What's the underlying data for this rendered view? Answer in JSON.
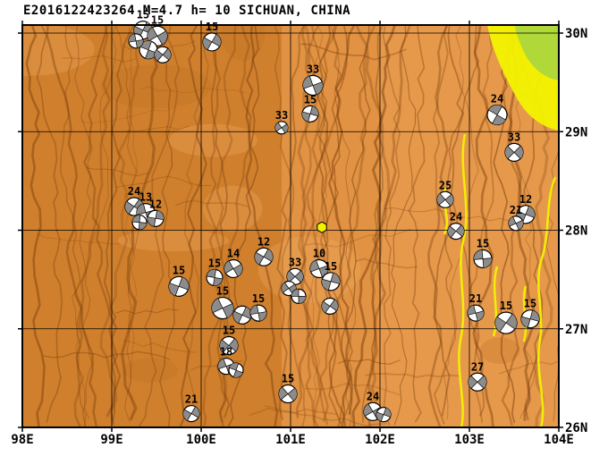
{
  "title": "E2016122423264 M=4.7 h= 10 SICHUAN, CHINA",
  "map": {
    "lon_ticks": [
      {
        "value": 98,
        "label": "98E"
      },
      {
        "value": 99,
        "label": "99E"
      },
      {
        "value": 100,
        "label": "100E"
      },
      {
        "value": 101,
        "label": "101E"
      },
      {
        "value": 102,
        "label": "102E"
      },
      {
        "value": 103,
        "label": "103E"
      },
      {
        "value": 104,
        "label": "104E"
      }
    ],
    "lat_ticks": [
      {
        "value": 30,
        "label": "30N"
      },
      {
        "value": 29,
        "label": "29N"
      },
      {
        "value": 28,
        "label": "28N"
      },
      {
        "value": 27,
        "label": "27N"
      },
      {
        "value": 26,
        "label": "26N"
      }
    ]
  },
  "colors": {
    "land_light": "#E6994B",
    "land_mid": "#DE8F3F",
    "land_dark": "#D0802D",
    "drainage": "#7A3E0C",
    "blotch_dark": "#B96F1F",
    "blotch_light": "#F3B169",
    "highland_yellow": "#F2F200",
    "highland_green": "#AFD838",
    "ball_fill": "#FFFFFF",
    "ball_shade": "#8C8C8C",
    "frame": "#000000"
  },
  "event_marker": {
    "lon": 101.35,
    "lat": 28.03,
    "shape": "hexagon",
    "color": "#F2F200"
  },
  "chart_data": {
    "type": "map-focal-mechanisms",
    "region": {
      "lon_min": 98,
      "lon_max": 104,
      "lat_min": 26,
      "lat_max": 30.08,
      "place": "SICHUAN, CHINA"
    },
    "mechanisms": [
      {
        "lon": 99.35,
        "lat": 30.03,
        "depth": "15",
        "r": 10,
        "rot": 25
      },
      {
        "lon": 99.51,
        "lat": 29.97,
        "depth": "15",
        "r": 11,
        "rot": 60
      },
      {
        "lon": 99.41,
        "lat": 29.83,
        "depth": "",
        "r": 10,
        "rot": 110
      },
      {
        "lon": 99.57,
        "lat": 29.78,
        "depth": "",
        "r": 9,
        "rot": 40
      },
      {
        "lon": 99.27,
        "lat": 29.92,
        "depth": "",
        "r": 8,
        "rot": 80
      },
      {
        "lon": 100.12,
        "lat": 29.91,
        "depth": "15",
        "r": 10,
        "rot": 30
      },
      {
        "lon": 101.25,
        "lat": 29.47,
        "depth": "33",
        "r": 11,
        "rot": 70
      },
      {
        "lon": 101.22,
        "lat": 29.18,
        "depth": "15",
        "r": 9,
        "rot": 15
      },
      {
        "lon": 100.9,
        "lat": 29.04,
        "depth": "33",
        "r": 7,
        "rot": 55
      },
      {
        "lon": 103.31,
        "lat": 29.17,
        "depth": "24",
        "r": 11,
        "rot": 120
      },
      {
        "lon": 103.5,
        "lat": 28.79,
        "depth": "33",
        "r": 10,
        "rot": 45
      },
      {
        "lon": 99.25,
        "lat": 28.24,
        "depth": "24",
        "r": 10,
        "rot": 35
      },
      {
        "lon": 99.38,
        "lat": 28.18,
        "depth": "13",
        "r": 10,
        "rot": 75
      },
      {
        "lon": 99.49,
        "lat": 28.12,
        "depth": "12",
        "r": 9,
        "rot": 10
      },
      {
        "lon": 99.31,
        "lat": 28.08,
        "depth": "",
        "r": 8,
        "rot": 95
      },
      {
        "lon": 102.73,
        "lat": 28.31,
        "depth": "25",
        "r": 9,
        "rot": 50
      },
      {
        "lon": 103.63,
        "lat": 28.16,
        "depth": "12",
        "r": 10,
        "rot": 20
      },
      {
        "lon": 103.52,
        "lat": 28.07,
        "depth": "21",
        "r": 8,
        "rot": 65
      },
      {
        "lon": 102.85,
        "lat": 27.99,
        "depth": "24",
        "r": 9,
        "rot": 40
      },
      {
        "lon": 103.15,
        "lat": 27.71,
        "depth": "15",
        "r": 10,
        "rot": 85
      },
      {
        "lon": 100.7,
        "lat": 27.73,
        "depth": "12",
        "r": 10,
        "rot": 30
      },
      {
        "lon": 100.36,
        "lat": 27.61,
        "depth": "14",
        "r": 10,
        "rot": 60
      },
      {
        "lon": 100.15,
        "lat": 27.52,
        "depth": "15",
        "r": 9,
        "rot": 100
      },
      {
        "lon": 99.75,
        "lat": 27.43,
        "depth": "15",
        "r": 11,
        "rot": 20
      },
      {
        "lon": 101.05,
        "lat": 27.53,
        "depth": "33",
        "r": 9,
        "rot": 45
      },
      {
        "lon": 101.32,
        "lat": 27.61,
        "depth": "10",
        "r": 10,
        "rot": 70
      },
      {
        "lon": 101.45,
        "lat": 27.48,
        "depth": "15",
        "r": 10,
        "rot": 15
      },
      {
        "lon": 100.98,
        "lat": 27.41,
        "depth": "",
        "r": 8,
        "rot": 55
      },
      {
        "lon": 101.09,
        "lat": 27.33,
        "depth": "",
        "r": 8,
        "rot": 90
      },
      {
        "lon": 101.44,
        "lat": 27.23,
        "depth": "",
        "r": 9,
        "rot": 35
      },
      {
        "lon": 100.24,
        "lat": 27.21,
        "depth": "15",
        "r": 12,
        "rot": 65
      },
      {
        "lon": 100.46,
        "lat": 27.14,
        "depth": "",
        "r": 10,
        "rot": 25
      },
      {
        "lon": 100.64,
        "lat": 27.16,
        "depth": "15",
        "r": 9,
        "rot": 80
      },
      {
        "lon": 100.31,
        "lat": 26.83,
        "depth": "15",
        "r": 10,
        "rot": 40
      },
      {
        "lon": 100.28,
        "lat": 26.62,
        "depth": "18",
        "r": 9,
        "rot": 70
      },
      {
        "lon": 100.39,
        "lat": 26.58,
        "depth": "",
        "r": 8,
        "rot": 110
      },
      {
        "lon": 100.97,
        "lat": 26.34,
        "depth": "15",
        "r": 10,
        "rot": 50
      },
      {
        "lon": 99.89,
        "lat": 26.14,
        "depth": "21",
        "r": 9,
        "rot": 30
      },
      {
        "lon": 101.92,
        "lat": 26.16,
        "depth": "24",
        "r": 10,
        "rot": 60
      },
      {
        "lon": 102.04,
        "lat": 26.13,
        "depth": "",
        "r": 8,
        "rot": 20
      },
      {
        "lon": 103.09,
        "lat": 26.46,
        "depth": "27",
        "r": 10,
        "rot": 45
      },
      {
        "lon": 103.07,
        "lat": 27.16,
        "depth": "21",
        "r": 9,
        "rot": 75
      },
      {
        "lon": 103.41,
        "lat": 27.06,
        "depth": "15",
        "r": 12,
        "rot": 35
      },
      {
        "lon": 103.68,
        "lat": 27.1,
        "depth": "15",
        "r": 10,
        "rot": 15
      }
    ]
  }
}
